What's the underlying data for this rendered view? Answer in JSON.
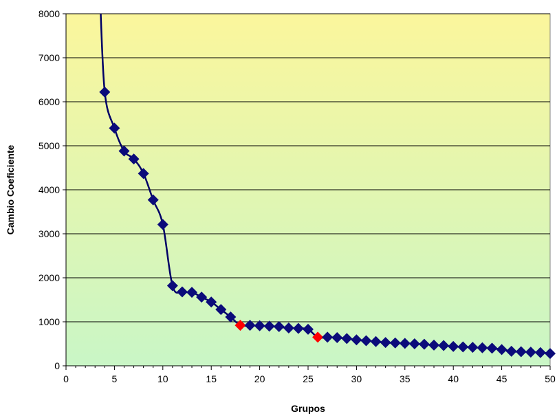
{
  "chart_data": {
    "type": "line",
    "title": "",
    "xlabel": "Grupos",
    "ylabel": "Cambio Coeficiente",
    "xlim": [
      0,
      50
    ],
    "ylim": [
      0,
      8000
    ],
    "xticks": [
      0,
      5,
      10,
      15,
      20,
      25,
      30,
      35,
      40,
      45,
      50
    ],
    "yticks": [
      0,
      1000,
      2000,
      3000,
      4000,
      5000,
      6000,
      7000,
      8000
    ],
    "grid": "horizontal",
    "legend": "none",
    "background": "vertical gradient from yellow at top to light green at bottom",
    "series": [
      {
        "points": [
          [
            3.5,
            8500
          ],
          [
            4,
            6220
          ],
          [
            5,
            5400
          ],
          [
            6,
            4880
          ],
          [
            7,
            4700
          ],
          [
            8,
            4370
          ],
          [
            9,
            3770
          ],
          [
            10,
            3210
          ],
          [
            11,
            1820
          ],
          [
            12,
            1680
          ],
          [
            13,
            1670
          ],
          [
            14,
            1560
          ],
          [
            15,
            1450
          ],
          [
            16,
            1280
          ],
          [
            17,
            1110
          ],
          [
            18,
            920
          ],
          [
            19,
            920
          ],
          [
            20,
            910
          ],
          [
            21,
            900
          ],
          [
            22,
            890
          ],
          [
            23,
            860
          ],
          [
            24,
            850
          ],
          [
            25,
            830
          ],
          [
            26,
            650
          ],
          [
            27,
            650
          ],
          [
            28,
            640
          ],
          [
            29,
            620
          ],
          [
            30,
            590
          ],
          [
            31,
            570
          ],
          [
            32,
            550
          ],
          [
            33,
            530
          ],
          [
            34,
            520
          ],
          [
            35,
            510
          ],
          [
            36,
            500
          ],
          [
            37,
            490
          ],
          [
            38,
            470
          ],
          [
            39,
            460
          ],
          [
            40,
            440
          ],
          [
            41,
            430
          ],
          [
            42,
            420
          ],
          [
            43,
            410
          ],
          [
            44,
            400
          ],
          [
            45,
            370
          ],
          [
            46,
            330
          ],
          [
            47,
            320
          ],
          [
            48,
            310
          ],
          [
            49,
            300
          ],
          [
            50,
            280
          ]
        ],
        "highlighted_x": [
          18,
          26
        ]
      }
    ],
    "colors": {
      "line": "#000066",
      "marker": "#0b0b7a",
      "highlight_marker": "#ff0000",
      "bg_top": "#fbf69c",
      "bg_bottom": "#c9f6c6",
      "grid": "#000000"
    }
  }
}
